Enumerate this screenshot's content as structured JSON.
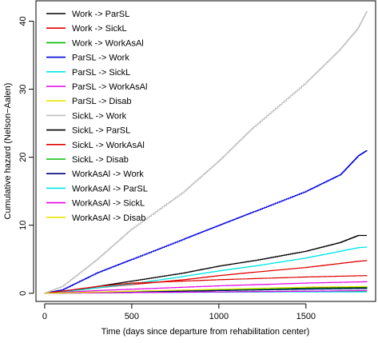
{
  "chart_data": {
    "type": "line",
    "title": "",
    "xlabel": "Time (days since departure from rehabilitation center)",
    "ylabel": "Cumulative hazard (Nelson−Aalen)",
    "xlim": [
      -50,
      1900
    ],
    "ylim": [
      -1.2,
      43
    ],
    "xticks": [
      0,
      500,
      1000,
      1500
    ],
    "yticks": [
      0,
      10,
      20,
      30,
      40
    ],
    "xtick_labels": [
      "0",
      "500",
      "1000",
      "1500"
    ],
    "ytick_labels": [
      "0",
      "10",
      "20",
      "30",
      "40"
    ],
    "grid": false,
    "legend_position": "top-left",
    "series": [
      {
        "name": "Work -> ParSL",
        "color": "#000000",
        "x": [
          0,
          100,
          300,
          500,
          800,
          1000,
          1200,
          1500,
          1700,
          1800,
          1850
        ],
        "y": [
          0,
          0.2,
          1.0,
          1.8,
          3.0,
          4.0,
          4.8,
          6.2,
          7.5,
          8.5,
          8.5
        ]
      },
      {
        "name": "Work -> SickL",
        "color": "#df0000",
        "x": [
          0,
          100,
          300,
          500,
          800,
          1000,
          1200,
          1500,
          1700,
          1800,
          1850
        ],
        "y": [
          0,
          0.2,
          0.8,
          1.3,
          2.0,
          2.6,
          3.1,
          3.8,
          4.4,
          4.7,
          4.8
        ]
      },
      {
        "name": "Work -> WorkAsAl",
        "color": "#00bb00",
        "x": [
          0,
          500,
          1000,
          1500,
          1850
        ],
        "y": [
          0,
          0.1,
          0.2,
          0.3,
          0.35
        ]
      },
      {
        "name": "ParSL -> Work",
        "color": "#0000dd",
        "x": [
          0,
          100,
          300,
          500,
          800,
          1000,
          1200,
          1500,
          1700,
          1800,
          1850
        ],
        "y": [
          0,
          0.5,
          3.0,
          5.0,
          8.0,
          10.0,
          12.0,
          15.0,
          17.5,
          20.2,
          21.0
        ]
      },
      {
        "name": "ParSL -> SickL",
        "color": "#00e6e6",
        "x": [
          0,
          100,
          300,
          500,
          800,
          1000,
          1200,
          1500,
          1700,
          1800,
          1850
        ],
        "y": [
          0,
          0.2,
          0.8,
          1.4,
          2.5,
          3.3,
          4.0,
          5.2,
          6.2,
          6.7,
          6.8
        ]
      },
      {
        "name": "ParSL -> WorkAsAl",
        "color": "#e600e6",
        "x": [
          0,
          300,
          500,
          1000,
          1500,
          1850
        ],
        "y": [
          0,
          0.4,
          0.6,
          1.1,
          1.5,
          1.7
        ]
      },
      {
        "name": "ParSL -> Disab",
        "color": "#e6e600",
        "x": [
          0,
          500,
          1000,
          1500,
          1850
        ],
        "y": [
          0,
          0.2,
          0.5,
          0.7,
          0.8
        ]
      },
      {
        "name": "SickL -> Work",
        "color": "#bebebe",
        "x": [
          0,
          100,
          300,
          500,
          800,
          1000,
          1200,
          1500,
          1700,
          1800,
          1850
        ],
        "y": [
          0,
          1.0,
          5.0,
          9.5,
          15.0,
          19.5,
          24.5,
          31.0,
          36.0,
          39.0,
          41.5
        ]
      },
      {
        "name": "SickL -> ParSL",
        "color": "#000000",
        "x": [
          0,
          500,
          1000,
          1500,
          1850
        ],
        "y": [
          0,
          0.2,
          0.4,
          0.8,
          0.9
        ]
      },
      {
        "name": "SickL -> WorkAsAl",
        "color": "#df0000",
        "x": [
          0,
          300,
          500,
          1000,
          1500,
          1850
        ],
        "y": [
          0,
          1.0,
          1.5,
          2.0,
          2.4,
          2.6
        ]
      },
      {
        "name": "SickL -> Disab",
        "color": "#00bb00",
        "x": [
          0,
          500,
          1000,
          1500,
          1850
        ],
        "y": [
          0,
          0.3,
          0.5,
          0.7,
          0.8
        ]
      },
      {
        "name": "WorkAsAl -> Work",
        "color": "#000080",
        "x": [
          0,
          500,
          1000,
          1500,
          1850
        ],
        "y": [
          0,
          0.2,
          0.4,
          0.6,
          0.7
        ]
      },
      {
        "name": "WorkAsAl -> ParSL",
        "color": "#00e6e6",
        "x": [
          0,
          500,
          1000,
          1500,
          1850
        ],
        "y": [
          0,
          0.1,
          0.15,
          0.2,
          0.2
        ]
      },
      {
        "name": "WorkAsAl -> SickL",
        "color": "#e600e6",
        "x": [
          0,
          500,
          1000,
          1500,
          1850
        ],
        "y": [
          0,
          0.1,
          0.2,
          0.3,
          0.4
        ]
      },
      {
        "name": "WorkAsAl -> Disab",
        "color": "#e6e600",
        "x": [
          0,
          500,
          1000,
          1500,
          1850
        ],
        "y": [
          0,
          0.3,
          0.6,
          0.9,
          1.0
        ]
      }
    ]
  }
}
